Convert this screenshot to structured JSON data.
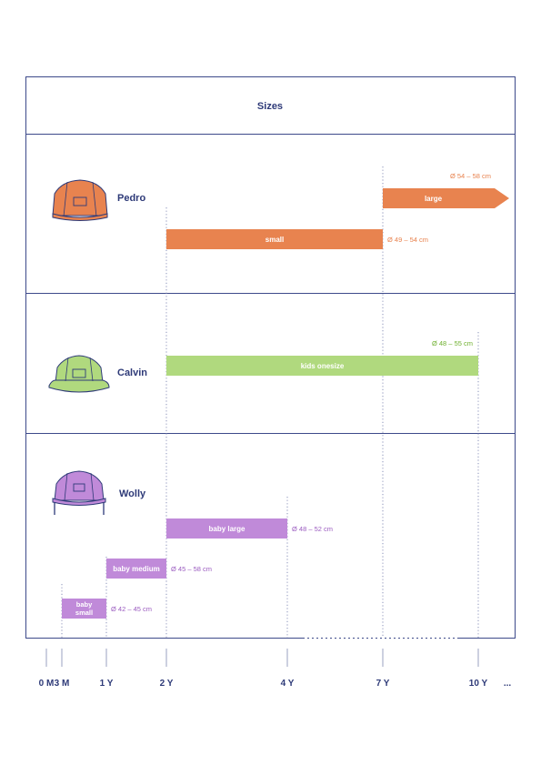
{
  "chart_data": {
    "type": "bar",
    "orientation": "horizontal-range",
    "title": "Sizes",
    "x_axis": {
      "ticks": [
        "0 M",
        "3 M",
        "1 Y",
        "2 Y",
        "4 Y",
        "7 Y",
        "10 Y",
        "..."
      ],
      "tick_months": [
        0,
        3,
        12,
        24,
        48,
        84,
        120
      ]
    },
    "colors": {
      "frame": "#3d4a8a",
      "axis_text": "#2e3a78",
      "pedro": "#e8834f",
      "calvin": "#b0d97e",
      "calvin_text": "#6fb02f",
      "wolly": "#c08ad9",
      "wolly_text": "#9b5cc0"
    },
    "groups": [
      {
        "name": "Pedro",
        "icon": "cap-icon",
        "color": "#e8834f",
        "bars": [
          {
            "label": "large",
            "start_month": 84,
            "end_month": 120,
            "open_ended": true,
            "size": "Ø 54 – 58 cm"
          },
          {
            "label": "small",
            "start_month": 24,
            "end_month": 84,
            "open_ended": false,
            "size": "Ø 49 – 54 cm"
          }
        ]
      },
      {
        "name": "Calvin",
        "icon": "cap-icon",
        "color": "#b0d97e",
        "bars": [
          {
            "label": "kids onesize",
            "start_month": 24,
            "end_month": 120,
            "open_ended": false,
            "size": "Ø 48 – 55 cm"
          }
        ]
      },
      {
        "name": "Wolly",
        "icon": "earflap-cap-icon",
        "color": "#c08ad9",
        "bars": [
          {
            "label": "baby large",
            "start_month": 24,
            "end_month": 48,
            "open_ended": false,
            "size": "Ø 48 – 52 cm"
          },
          {
            "label": "baby medium",
            "start_month": 12,
            "end_month": 24,
            "open_ended": false,
            "size": "Ø 45 – 58 cm"
          },
          {
            "label": "baby small",
            "start_month": 3,
            "end_month": 12,
            "open_ended": false,
            "size": "Ø 42 – 45 cm"
          }
        ]
      }
    ]
  }
}
